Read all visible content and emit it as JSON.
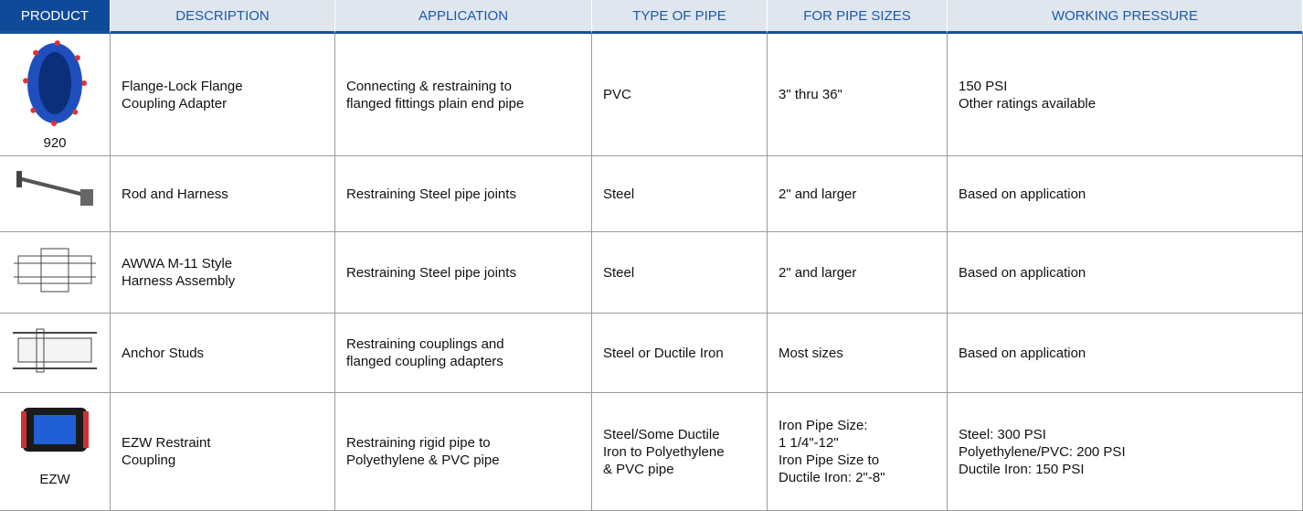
{
  "table": {
    "header": [
      "PRODUCT",
      "DESCRIPTION",
      "APPLICATION",
      "TYPE OF PIPE",
      "FOR PIPE SIZES",
      "WORKING PRESSURE"
    ],
    "rows": [
      {
        "product_label": "920",
        "cells": [
          [
            "Flange-Lock Flange",
            "Coupling Adapter"
          ],
          [
            "Connecting & restraining to",
            "flanged fittings plain end pipe"
          ],
          [
            "PVC"
          ],
          [
            "3\" thru 36\""
          ],
          [
            "150 PSI",
            "Other ratings available"
          ]
        ]
      },
      {
        "cells": [
          [
            "Rod and Harness"
          ],
          [
            "Restraining Steel pipe joints"
          ],
          [
            "Steel"
          ],
          [
            "2\" and larger"
          ],
          [
            "Based on application"
          ]
        ]
      },
      {
        "cells": [
          [
            "AWWA M-11 Style",
            "Harness Assembly"
          ],
          [
            "Restraining Steel pipe joints"
          ],
          [
            "Steel"
          ],
          [
            "2\" and larger"
          ],
          [
            "Based on application"
          ]
        ]
      },
      {
        "cells": [
          [
            "Anchor Studs"
          ],
          [
            "Restraining couplings and",
            "flanged coupling adapters"
          ],
          [
            "Steel or Ductile Iron"
          ],
          [
            "Most sizes"
          ],
          [
            "Based on application"
          ]
        ]
      },
      {
        "product_label": "EZW",
        "cells": [
          [
            "EZW Restraint",
            "Coupling"
          ],
          [
            "Restraining rigid pipe to",
            "Polyethylene & PVC pipe"
          ],
          [
            "Steel/Some Ductile",
            "Iron to Polyethylene",
            "& PVC pipe"
          ],
          [
            "Iron Pipe Size:",
            "1 1/4\"-12\"",
            "Iron Pipe Size to",
            "Ductile Iron: 2\"-8\""
          ],
          [
            "Steel: 300 PSI",
            "Polyethylene/PVC: 200 PSI",
            "Ductile Iron: 150 PSI"
          ]
        ]
      }
    ]
  }
}
